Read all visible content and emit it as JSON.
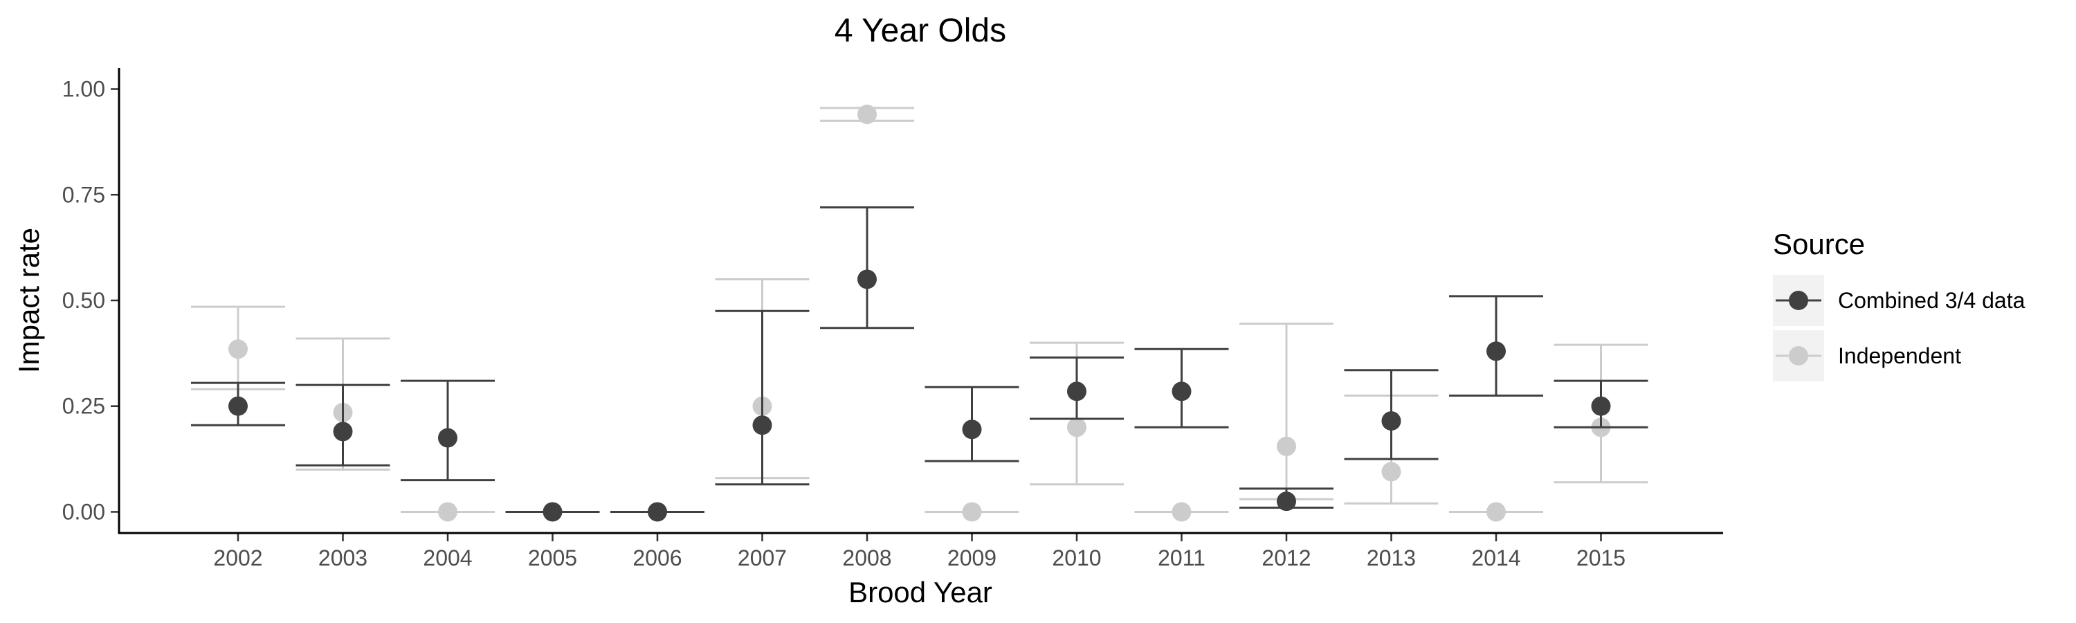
{
  "chart_data": {
    "type": "scatter",
    "title": "4 Year Olds",
    "xlabel": "Brood Year",
    "ylabel": "Impact rate",
    "ylim": [
      -0.05,
      1.05
    ],
    "yticks": [
      0.0,
      0.25,
      0.5,
      0.75,
      1.0
    ],
    "ytick_labels": [
      "0.00",
      "0.25",
      "0.50",
      "0.75",
      "1.00"
    ],
    "categories": [
      "2002",
      "2003",
      "2004",
      "2005",
      "2006",
      "2007",
      "2008",
      "2009",
      "2010",
      "2011",
      "2012",
      "2013",
      "2014",
      "2015"
    ],
    "grid": false,
    "legend": {
      "title": "Source",
      "placement": "right",
      "entries": [
        "Combined 3/4 data",
        "Independent"
      ]
    },
    "series": [
      {
        "name": "Independent",
        "color": "#cccccc",
        "values": [
          0.385,
          0.235,
          0.0,
          0.0,
          0.0,
          0.25,
          0.94,
          0.0,
          0.2,
          0.0,
          0.155,
          0.095,
          0.0,
          0.2
        ],
        "lower": [
          0.29,
          0.1,
          0.0,
          0.0,
          0.0,
          0.08,
          0.925,
          0.0,
          0.065,
          0.0,
          0.03,
          0.02,
          0.0,
          0.07
        ],
        "upper": [
          0.485,
          0.41,
          0.0,
          0.0,
          0.0,
          0.55,
          0.955,
          0.0,
          0.4,
          0.0,
          0.445,
          0.275,
          0.0,
          0.395
        ]
      },
      {
        "name": "Combined 3/4 data",
        "color": "#404040",
        "values": [
          0.25,
          0.19,
          0.175,
          0.0,
          0.0,
          0.205,
          0.55,
          0.195,
          0.285,
          0.285,
          0.025,
          0.215,
          0.38,
          0.25
        ],
        "lower": [
          0.205,
          0.11,
          0.075,
          0.0,
          0.0,
          0.065,
          0.435,
          0.12,
          0.22,
          0.2,
          0.01,
          0.125,
          0.275,
          0.2
        ],
        "upper": [
          0.305,
          0.3,
          0.31,
          0.0,
          0.0,
          0.475,
          0.72,
          0.295,
          0.365,
          0.385,
          0.055,
          0.335,
          0.51,
          0.31
        ]
      }
    ]
  }
}
